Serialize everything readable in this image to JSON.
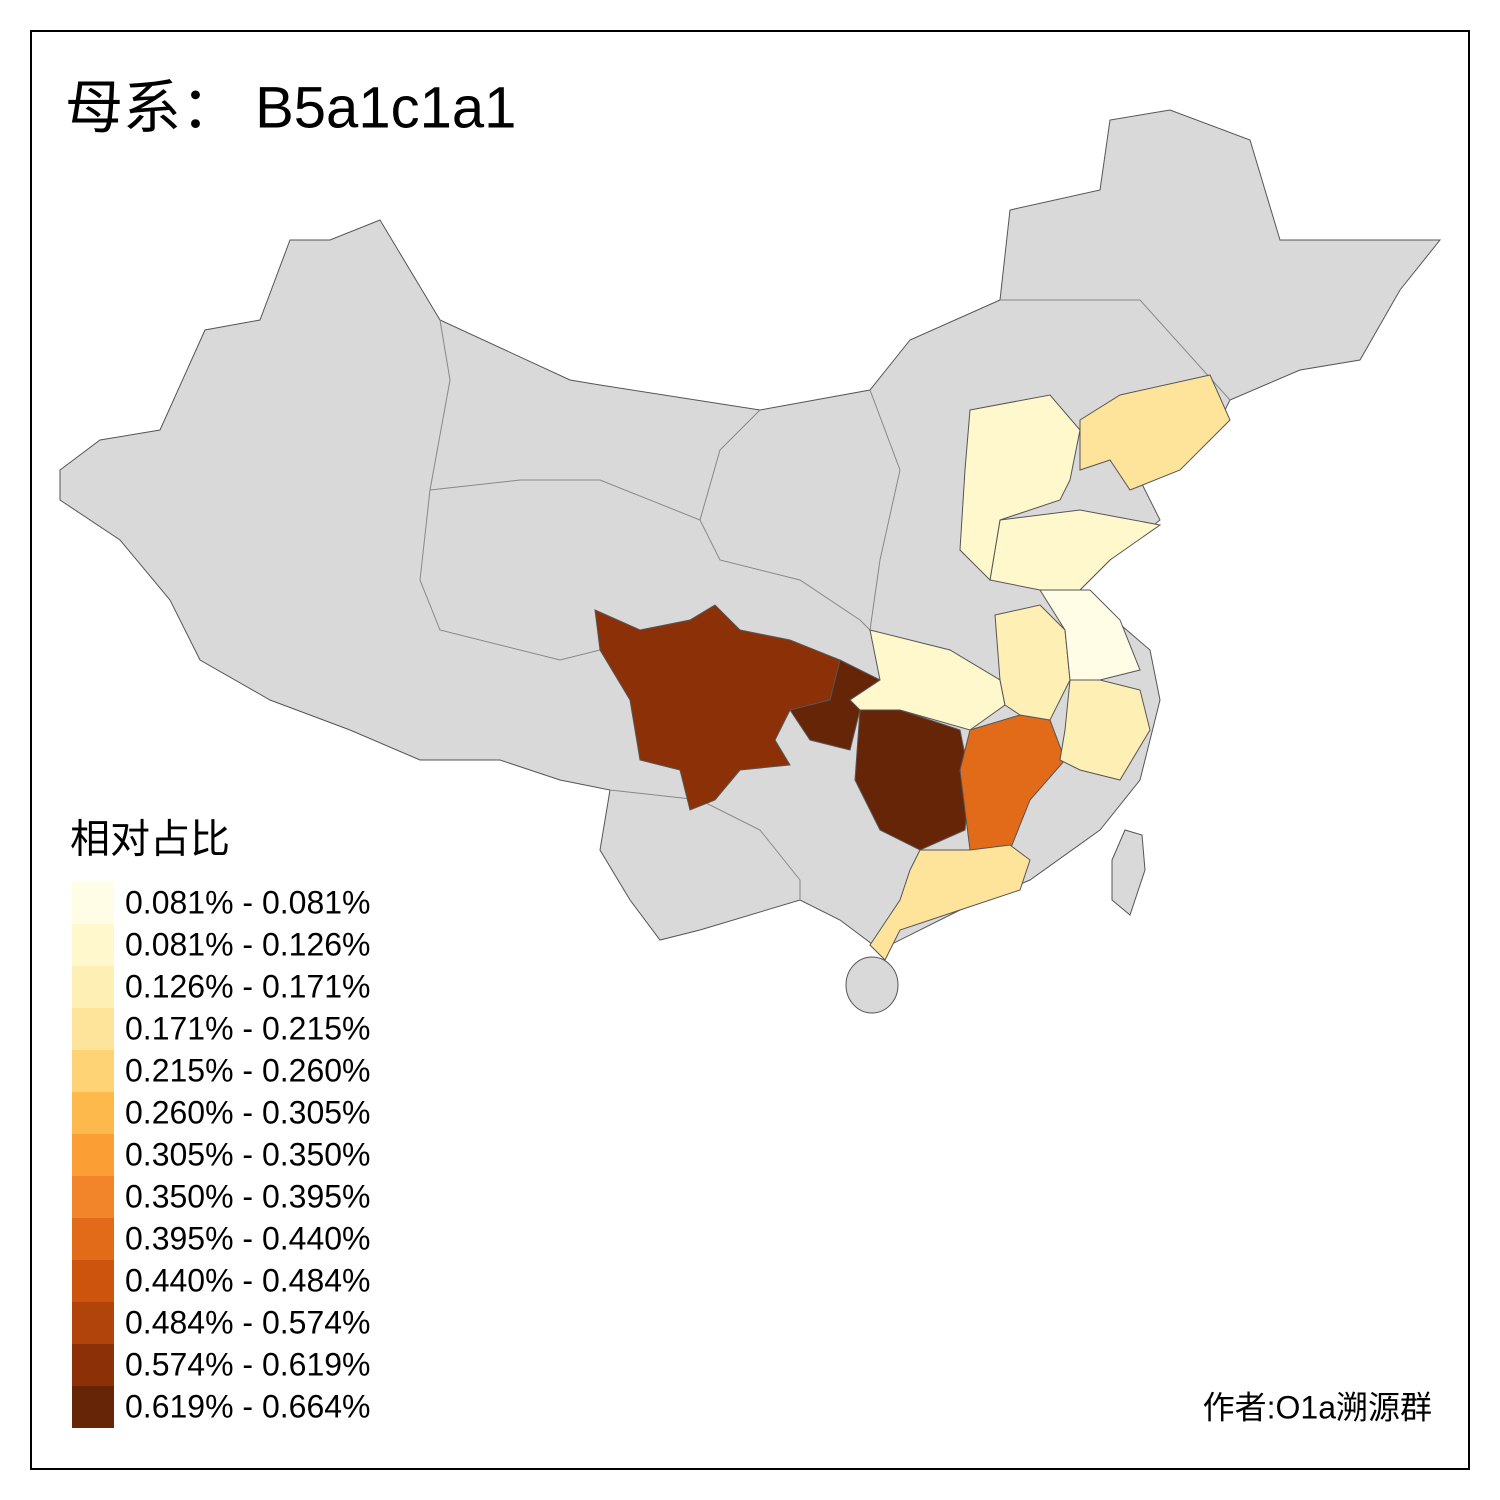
{
  "title": "母系： B5a1c1a1",
  "legend": {
    "title": "相对占比",
    "items": [
      {
        "label": "0.081% - 0.081%",
        "color": "#fffde6"
      },
      {
        "label": "0.081% - 0.126%",
        "color": "#fff8cc"
      },
      {
        "label": "0.126% - 0.171%",
        "color": "#feefb5"
      },
      {
        "label": "0.171% - 0.215%",
        "color": "#fee49a"
      },
      {
        "label": "0.215% - 0.260%",
        "color": "#fed375"
      },
      {
        "label": "0.260% - 0.305%",
        "color": "#fdb94c"
      },
      {
        "label": "0.305% - 0.350%",
        "color": "#fb9e33"
      },
      {
        "label": "0.350% - 0.395%",
        "color": "#f2842a"
      },
      {
        "label": "0.395% - 0.440%",
        "color": "#e26b1a"
      },
      {
        "label": "0.440% - 0.484%",
        "color": "#cd540d"
      },
      {
        "label": "0.484% - 0.574%",
        "color": "#b0440a"
      },
      {
        "label": "0.574% - 0.619%",
        "color": "#8c3107"
      },
      {
        "label": "0.619% - 0.664%",
        "color": "#662506"
      }
    ]
  },
  "author": "作者:O1a溯源群"
}
